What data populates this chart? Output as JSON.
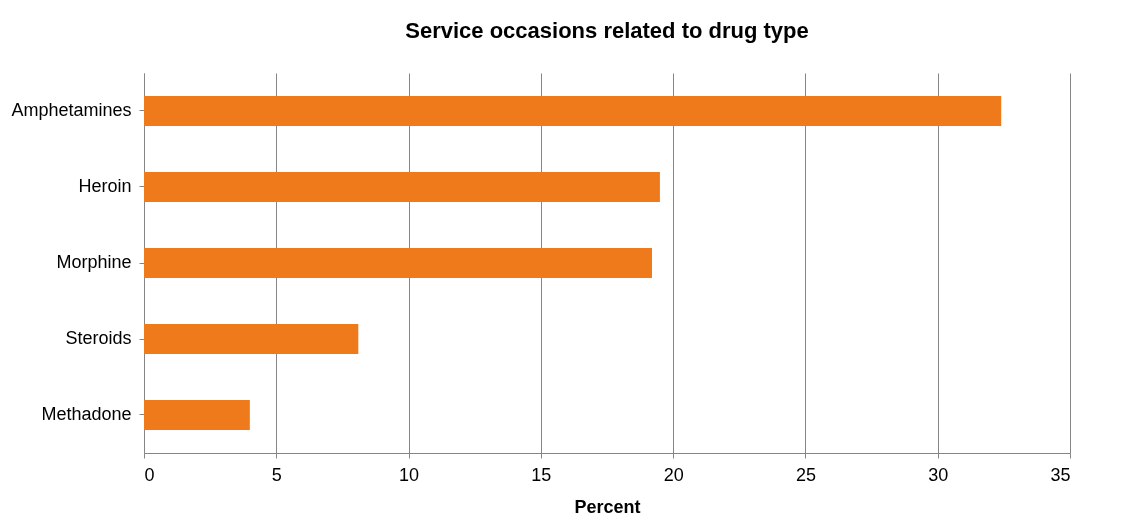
{
  "chart_data": {
    "type": "bar",
    "orientation": "horizontal",
    "title": "Service occasions related to drug type",
    "xlabel": "Percent",
    "categories": [
      "Amphetamines",
      "Heroin",
      "Morphine",
      "Steroids",
      "Methadone"
    ],
    "values": [
      32.4,
      19.5,
      19.2,
      8.1,
      4.0
    ],
    "color": "#ee7a1c",
    "xlim": [
      0,
      35
    ],
    "xticks": [
      0,
      5,
      10,
      15,
      20,
      25,
      30,
      35
    ],
    "grid": "x"
  }
}
